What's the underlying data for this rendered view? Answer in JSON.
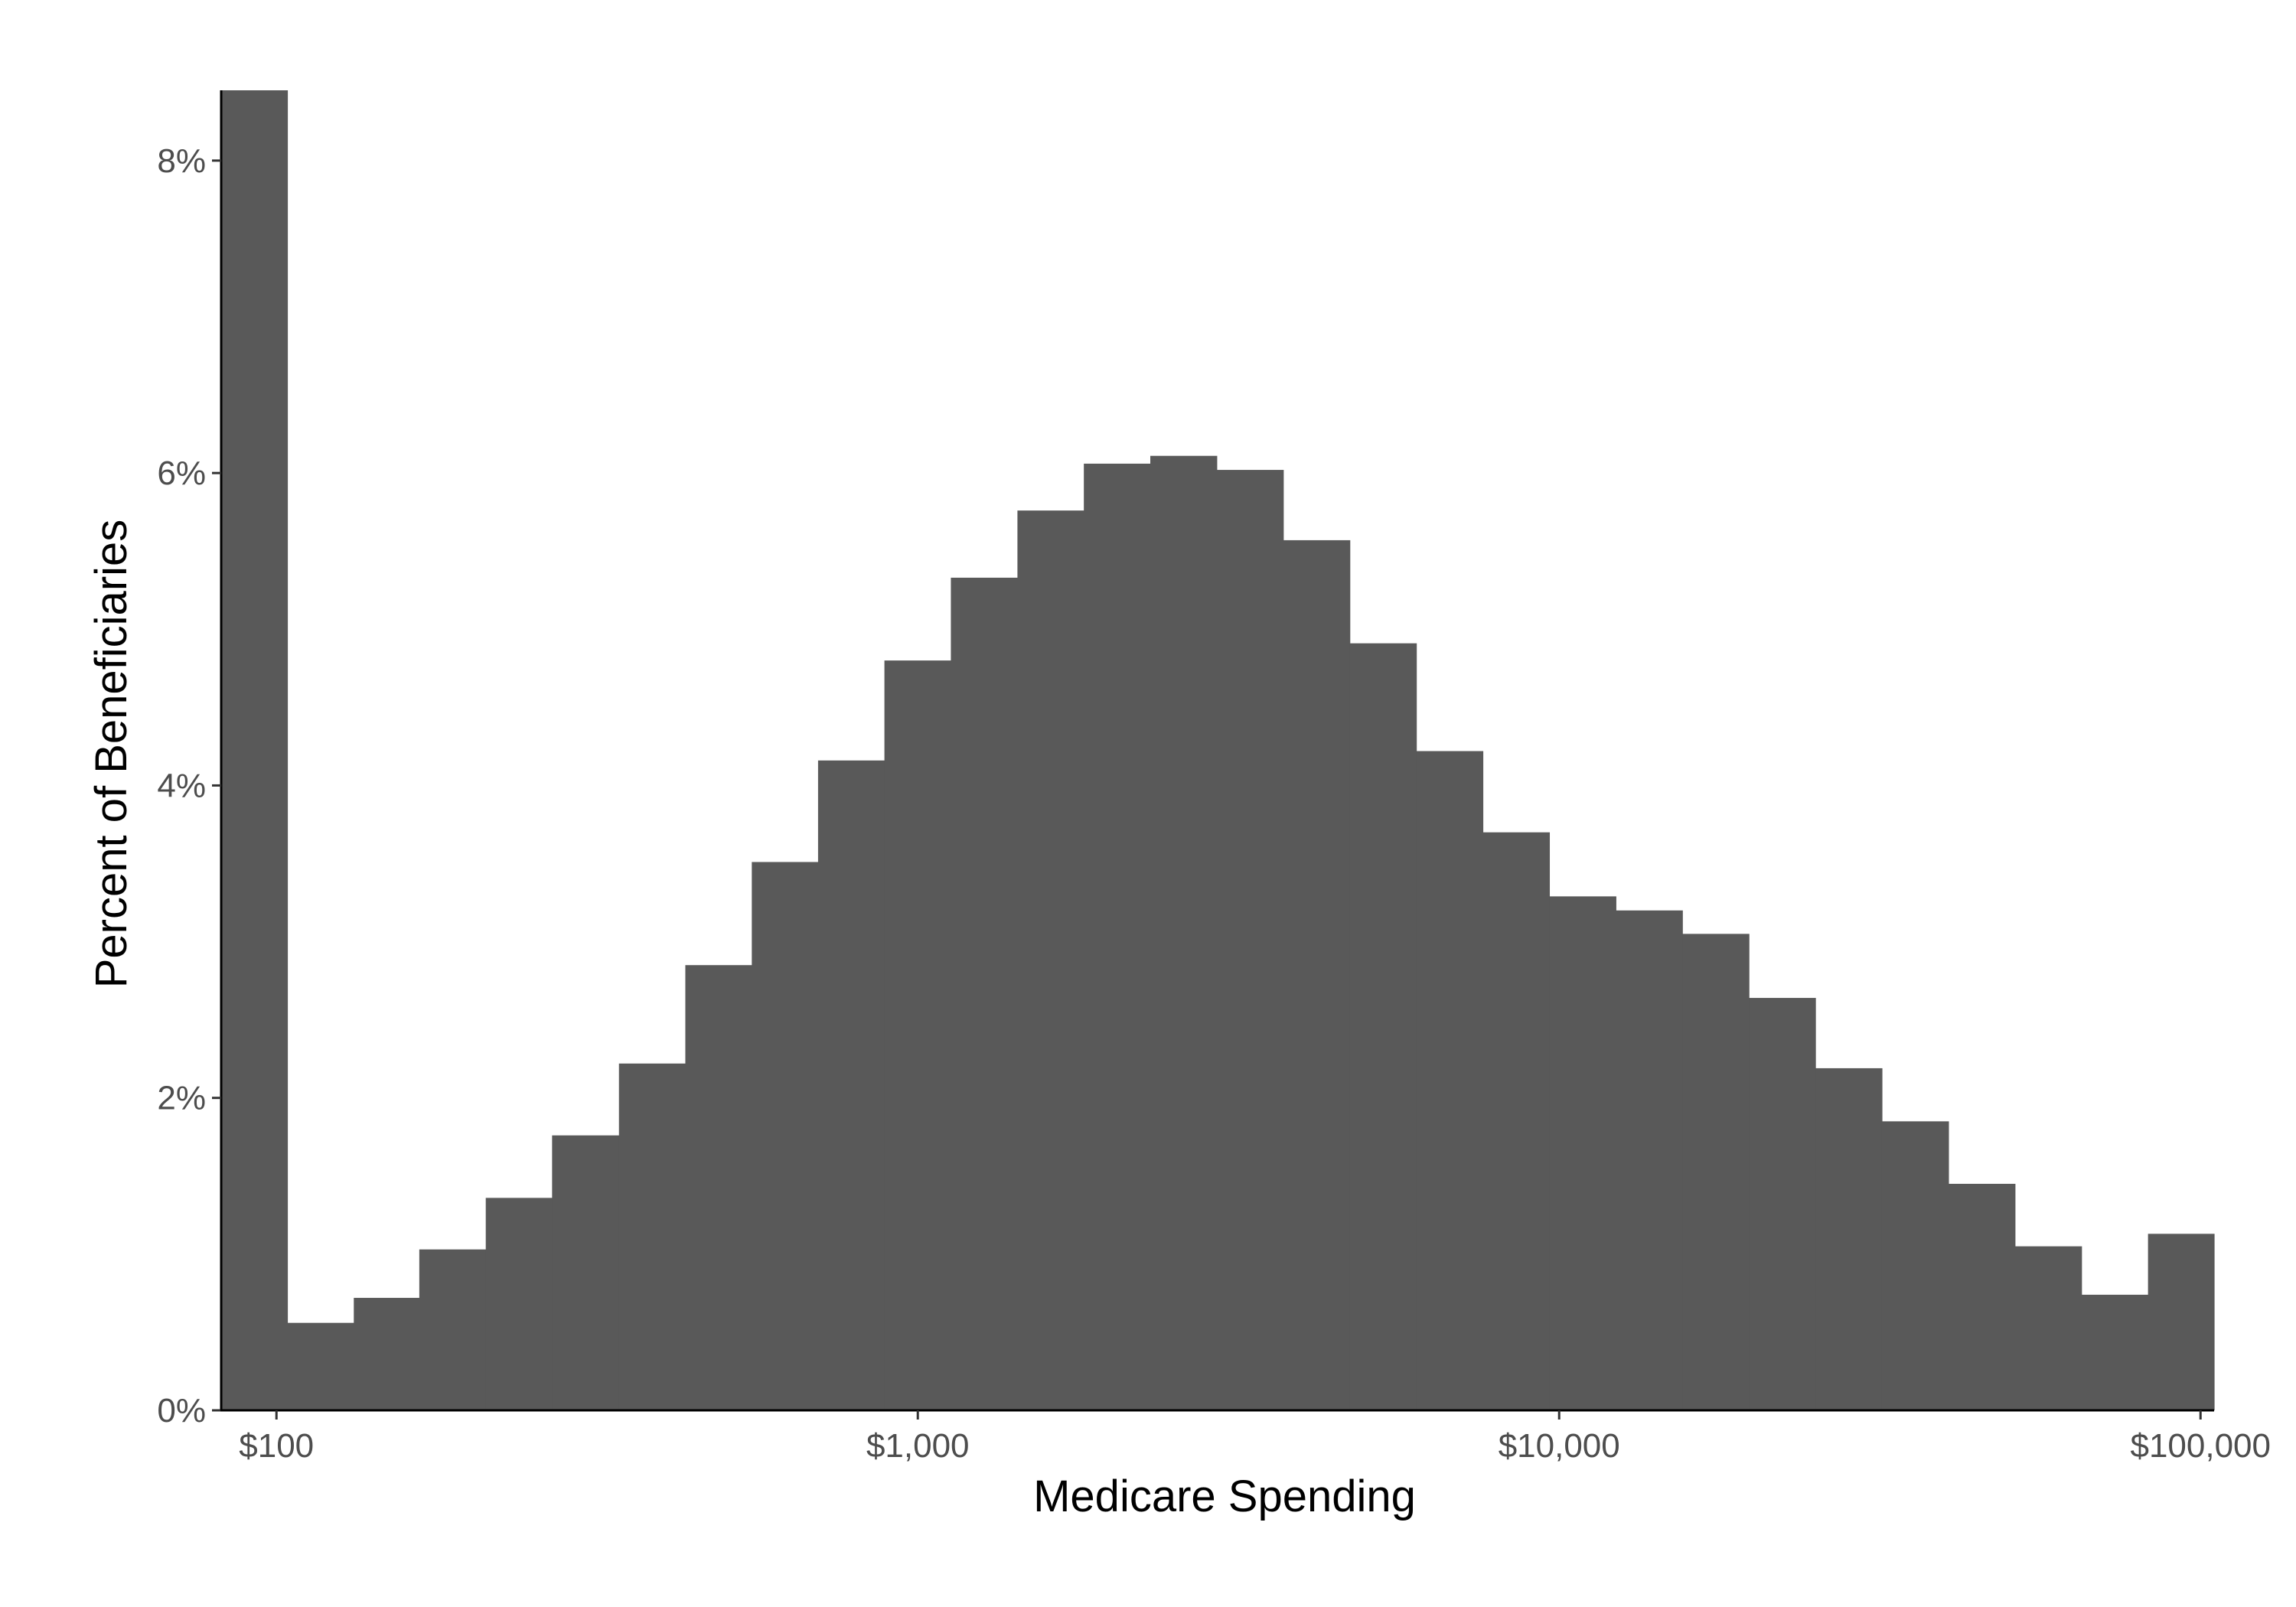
{
  "chart_data": {
    "type": "bar",
    "subtype": "histogram",
    "xlabel": "Medicare Spending",
    "ylabel": "Percent of Beneficiaries",
    "x_scale": "log10",
    "xlim": [
      82,
      105000
    ],
    "ylim": [
      0,
      8.45
    ],
    "x_ticks": [
      {
        "value": 100,
        "label": "$100"
      },
      {
        "value": 1000,
        "label": "$1,000"
      },
      {
        "value": 10000,
        "label": "$10,000"
      },
      {
        "value": 100000,
        "label": "$100,000"
      }
    ],
    "y_ticks": [
      {
        "value": 0,
        "label": "0%"
      },
      {
        "value": 2,
        "label": "2%"
      },
      {
        "value": 4,
        "label": "4%"
      },
      {
        "value": 6,
        "label": "6%"
      },
      {
        "value": 8,
        "label": "8%"
      }
    ],
    "bin_edges": [
      82,
      104,
      132,
      167,
      212,
      269,
      342,
      434,
      551,
      699,
      887,
      1126,
      1430,
      1815,
      2304,
      2925,
      3714,
      4716,
      5988,
      7603,
      9654,
      12258,
      15564,
      19762,
      25093,
      31862,
      40457,
      51370,
      65227,
      82821,
      105000
    ],
    "values": [
      8.45,
      0.56,
      0.72,
      1.03,
      1.36,
      1.76,
      2.22,
      2.85,
      3.51,
      4.16,
      4.8,
      5.33,
      5.76,
      6.06,
      6.11,
      6.02,
      5.57,
      4.91,
      4.22,
      3.7,
      3.29,
      3.2,
      3.05,
      2.64,
      2.19,
      1.85,
      1.45,
      1.05,
      0.74,
      1.13
    ],
    "bar_color": "#595959",
    "grid": false,
    "legend": "none"
  }
}
